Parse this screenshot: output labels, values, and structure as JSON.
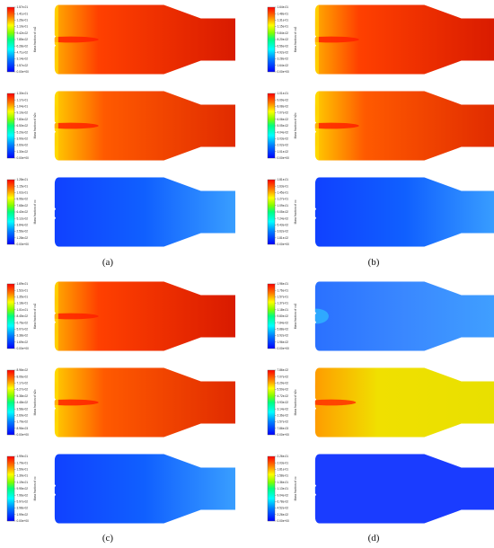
{
  "figure": {
    "captions": [
      "(a)",
      "(b)",
      "(c)",
      "(d)"
    ],
    "colormap": [
      "#0000ff",
      "#0080ff",
      "#00ffff",
      "#00ff80",
      "#80ff00",
      "#ffff00",
      "#ff8000",
      "#ff0000"
    ],
    "groups": [
      {
        "label": "(a)",
        "plots": [
          {
            "title": "Mass fraction of co2",
            "ticks": [
              "1.57e-01",
              "1.41e-01",
              "1.26e-01",
              "1.10e-01",
              "9.42e-02",
              "7.85e-02",
              "6.28e-02",
              "4.71e-02",
              "3.14e-02",
              "1.57e-02",
              "0.00e+00"
            ],
            "field": "co2"
          },
          {
            "title": "Mass fraction of h2o",
            "ticks": [
              "1.30e-01",
              "1.17e-01",
              "1.04e-01",
              "9.10e-02",
              "7.80e-02",
              "6.50e-02",
              "5.20e-02",
              "3.90e-02",
              "2.60e-02",
              "1.30e-02",
              "0.00e+00"
            ],
            "field": "h2o"
          },
          {
            "title": "Mass fraction of co",
            "ticks": [
              "1.28e-01",
              "1.15e-01",
              "1.02e-01",
              "8.96e-02",
              "7.68e-02",
              "6.40e-02",
              "5.12e-02",
              "3.84e-02",
              "2.56e-02",
              "1.28e-02",
              "0.00e+00"
            ],
            "field": "co"
          }
        ]
      },
      {
        "label": "(b)",
        "plots": [
          {
            "title": "Mass fraction of co2",
            "ticks": [
              "1.64e-01",
              "1.48e-01",
              "1.31e-01",
              "1.15e-01",
              "9.84e-02",
              "8.20e-02",
              "6.56e-02",
              "4.92e-02",
              "3.28e-02",
              "1.64e-02",
              "0.00e+00"
            ],
            "field": "co2"
          },
          {
            "title": "Mass fraction of h2o",
            "ticks": [
              "1.01e-01",
              "9.09e-02",
              "8.08e-02",
              "7.07e-02",
              "6.06e-02",
              "5.05e-02",
              "4.04e-02",
              "3.03e-02",
              "2.02e-02",
              "1.01e-02",
              "0.00e+00"
            ],
            "field": "h2o"
          },
          {
            "title": "Mass fraction of co",
            "ticks": [
              "1.81e-01",
              "1.63e-01",
              "1.45e-01",
              "1.27e-01",
              "1.09e-01",
              "9.05e-02",
              "7.24e-02",
              "5.43e-02",
              "3.62e-02",
              "1.81e-02",
              "0.00e+00"
            ],
            "field": "co"
          }
        ]
      },
      {
        "label": "(c)",
        "plots": [
          {
            "title": "Mass fraction of co2",
            "ticks": [
              "1.69e-01",
              "1.52e-01",
              "1.35e-01",
              "1.18e-01",
              "1.01e-01",
              "8.45e-02",
              "6.76e-02",
              "5.07e-02",
              "3.38e-02",
              "1.69e-02",
              "0.00e+00"
            ],
            "field": "co2"
          },
          {
            "title": "Mass fraction of h2o",
            "ticks": [
              "8.96e-02",
              "8.06e-02",
              "7.17e-02",
              "6.27e-02",
              "5.38e-02",
              "4.48e-02",
              "3.58e-02",
              "2.69e-02",
              "1.79e-02",
              "8.96e-03",
              "0.00e+00"
            ],
            "field": "h2o"
          },
          {
            "title": "Mass fraction of co",
            "ticks": [
              "1.99e-01",
              "1.79e-01",
              "1.59e-01",
              "1.39e-01",
              "1.19e-01",
              "9.95e-02",
              "7.96e-02",
              "5.97e-02",
              "3.98e-02",
              "1.99e-02",
              "0.00e+00"
            ],
            "field": "co"
          }
        ]
      },
      {
        "label": "(d)",
        "plots": [
          {
            "title": "Mass fraction of co2",
            "ticks": [
              "1.96e-01",
              "1.76e-01",
              "1.57e-01",
              "1.37e-01",
              "1.18e-01",
              "9.80e-02",
              "7.84e-02",
              "5.88e-02",
              "3.92e-02",
              "1.96e-02",
              "0.00e+00"
            ],
            "field": "co2_low"
          },
          {
            "title": "Mass fraction of h2o",
            "ticks": [
              "7.86e-02",
              "7.07e-02",
              "6.29e-02",
              "5.50e-02",
              "4.72e-02",
              "3.93e-02",
              "3.14e-02",
              "2.36e-02",
              "1.57e-02",
              "7.86e-03",
              "0.00e+00"
            ],
            "field": "h2o_mid"
          },
          {
            "title": "Mass fraction of co",
            "ticks": [
              "2.26e-01",
              "2.03e-01",
              "1.81e-01",
              "1.58e-01",
              "1.36e-01",
              "1.13e-01",
              "9.04e-02",
              "6.78e-02",
              "4.52e-02",
              "2.26e-02",
              "0.00e+00"
            ],
            "field": "co_small"
          }
        ]
      }
    ]
  }
}
